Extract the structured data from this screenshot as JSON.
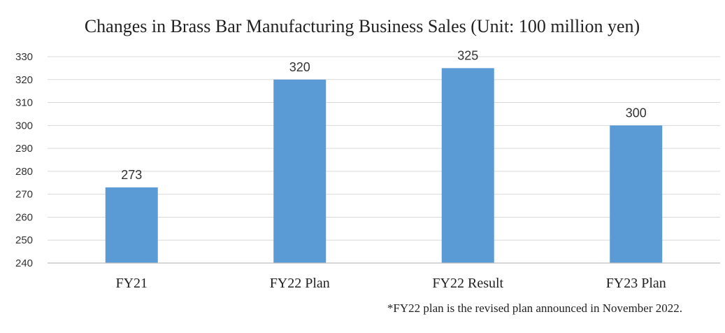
{
  "chart_data": {
    "type": "bar",
    "title": "Changes in Brass Bar Manufacturing Business Sales (Unit: 100 million yen)",
    "categories": [
      "FY21",
      "FY22 Plan",
      "FY22 Result",
      "FY23 Plan"
    ],
    "values": [
      273,
      320,
      325,
      300
    ],
    "data_labels": [
      "273",
      "320",
      "325",
      "300"
    ],
    "xlabel": "",
    "ylabel": "",
    "ylim": [
      240,
      330
    ],
    "yticks": [
      240,
      250,
      260,
      270,
      280,
      290,
      300,
      310,
      320,
      330
    ],
    "ytick_labels": [
      "240",
      "250",
      "260",
      "270",
      "280",
      "290",
      "300",
      "310",
      "320",
      "330"
    ],
    "grid": true,
    "legend": "none",
    "bar_color": "#5b9bd5",
    "footnote": "*FY22 plan is the revised plan announced in November 2022."
  }
}
